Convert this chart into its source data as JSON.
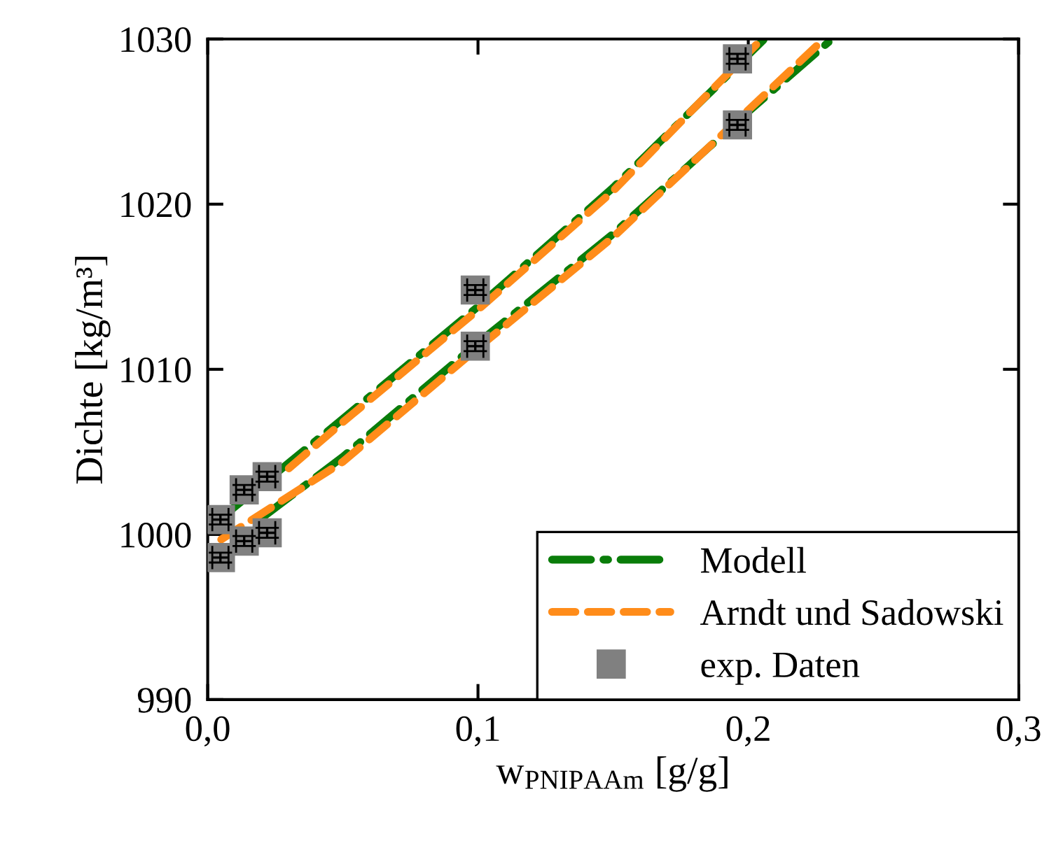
{
  "chart_data": {
    "type": "line",
    "xlabel": "w$_{PNIPAAm}$ [g/g]",
    "ylabel": "Dichte [kg/m³]",
    "xlim": [
      0,
      0.3
    ],
    "ylim": [
      990,
      1030
    ],
    "xticks": [
      {
        "value": 0,
        "label": "0,0"
      },
      {
        "value": 0.1,
        "label": "0,1"
      },
      {
        "value": 0.2,
        "label": "0,2"
      },
      {
        "value": 0.3,
        "label": "0,3"
      }
    ],
    "yticks": [
      990,
      1000,
      1010,
      1020,
      1030
    ],
    "grid": false,
    "legend": "bottom right",
    "series": [
      {
        "name": "Modell",
        "color": "#0a7d0a",
        "line_style": "dashdot",
        "x": [
          0.005,
          0.05,
          0.1,
          0.15,
          0.206
        ],
        "values": [
          1001.0,
          1007.0,
          1013.8,
          1021.0,
          1030
        ]
      },
      {
        "color": "#0a7d0a",
        "line_style": "dashdot",
        "x": [
          0.02,
          0.05,
          0.1,
          0.15,
          0.2,
          0.231
        ],
        "values": [
          1001.0,
          1004.7,
          1011.6,
          1018.2,
          1025.6,
          1030
        ]
      },
      {
        "name": "Arndt und Sadowski",
        "color": "#ff8c1a",
        "line_style": "dashed",
        "x": [
          0.03,
          0.05,
          0.1,
          0.15,
          0.205
        ],
        "values": [
          1004.0,
          1006.8,
          1013.6,
          1020.8,
          1030
        ]
      },
      {
        "color": "#ff8c1a",
        "line_style": "dashed",
        "x": [
          0.005,
          0.05,
          0.1,
          0.15,
          0.2,
          0.228
        ],
        "values": [
          999.7,
          1004.4,
          1011.3,
          1018.0,
          1025.7,
          1030
        ]
      },
      {
        "name": "exp. Daten",
        "type": "scatter",
        "marker": "square",
        "color": "#808080",
        "x": [
          0.0047,
          0.0047,
          0.0135,
          0.0135,
          0.022,
          0.022,
          0.099,
          0.099,
          0.196,
          0.196
        ],
        "values": [
          1000.9,
          998.6,
          1002.7,
          999.6,
          1003.5,
          1000.1,
          1014.8,
          1011.4,
          1028.8,
          1024.8
        ],
        "errors": [
          0.3,
          0.3,
          0.3,
          0.3,
          0.3,
          0.3,
          0.3,
          0.3,
          0.3,
          0.3
        ],
        "xerrors": [
          0.003,
          0.003,
          0.003,
          0.003,
          0.003,
          0.003,
          0.003,
          0.003,
          0.003,
          0.003
        ]
      }
    ]
  }
}
